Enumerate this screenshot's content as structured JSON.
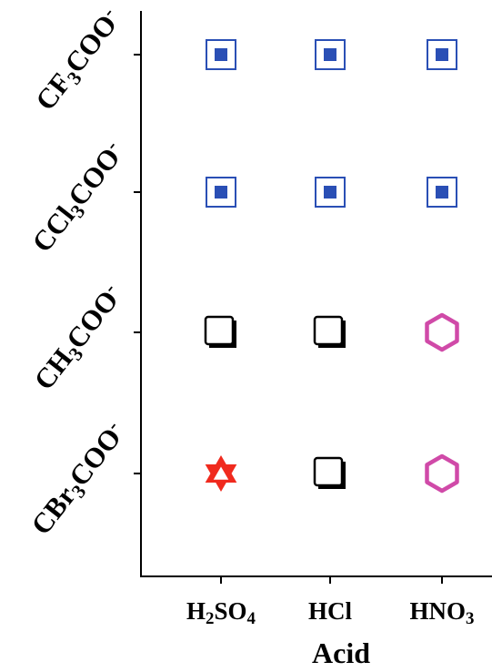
{
  "chart_data": {
    "type": "scatter",
    "xlabel": "Acid",
    "ylabel": "",
    "x_categories": [
      {
        "id": "H2SO4",
        "parts": [
          [
            "H",
            ""
          ],
          [
            "2",
            "sub"
          ],
          [
            "SO",
            ""
          ],
          [
            "4",
            "sub"
          ]
        ]
      },
      {
        "id": "HCl",
        "parts": [
          [
            "HCl",
            ""
          ]
        ]
      },
      {
        "id": "HNO3",
        "parts": [
          [
            "HNO",
            ""
          ],
          [
            "3",
            "sub"
          ]
        ]
      }
    ],
    "y_categories": [
      {
        "id": "CF3COO-",
        "parts": [
          [
            "CF",
            ""
          ],
          [
            "3",
            "sub"
          ],
          [
            "COO",
            ""
          ],
          [
            "-",
            "sup"
          ]
        ]
      },
      {
        "id": "CCl3COO-",
        "parts": [
          [
            "CCl",
            ""
          ],
          [
            "3",
            "sub"
          ],
          [
            "COO",
            ""
          ],
          [
            "-",
            "sup"
          ]
        ]
      },
      {
        "id": "CH3COO-",
        "parts": [
          [
            "CH",
            ""
          ],
          [
            "3",
            "sub"
          ],
          [
            "COO",
            ""
          ],
          [
            "-",
            "sup"
          ]
        ]
      },
      {
        "id": "CBr3COO-",
        "parts": [
          [
            "CBr",
            ""
          ],
          [
            "3",
            "sub"
          ],
          [
            "COO",
            ""
          ],
          [
            "-",
            "sup"
          ]
        ]
      }
    ],
    "points": [
      {
        "x": "H2SO4",
        "y": "CF3COO-",
        "marker": "framed-square"
      },
      {
        "x": "HCl",
        "y": "CF3COO-",
        "marker": "framed-square"
      },
      {
        "x": "HNO3",
        "y": "CF3COO-",
        "marker": "framed-square"
      },
      {
        "x": "H2SO4",
        "y": "CCl3COO-",
        "marker": "framed-square"
      },
      {
        "x": "HCl",
        "y": "CCl3COO-",
        "marker": "framed-square"
      },
      {
        "x": "HNO3",
        "y": "CCl3COO-",
        "marker": "framed-square"
      },
      {
        "x": "H2SO4",
        "y": "CH3COO-",
        "marker": "shadowed-square"
      },
      {
        "x": "HCl",
        "y": "CH3COO-",
        "marker": "shadowed-square"
      },
      {
        "x": "HNO3",
        "y": "CH3COO-",
        "marker": "hexagon"
      },
      {
        "x": "H2SO4",
        "y": "CBr3COO-",
        "marker": "star-of-david"
      },
      {
        "x": "HCl",
        "y": "CBr3COO-",
        "marker": "shadowed-square"
      },
      {
        "x": "HNO3",
        "y": "CBr3COO-",
        "marker": "hexagon"
      }
    ],
    "grid": false,
    "legend": "none"
  },
  "colors": {
    "framed-square": "#2a4fb5",
    "shadowed-square": "#000000",
    "hexagon": "#d04aa8",
    "star-of-david": "#f02a1e",
    "axis": "#000000"
  }
}
